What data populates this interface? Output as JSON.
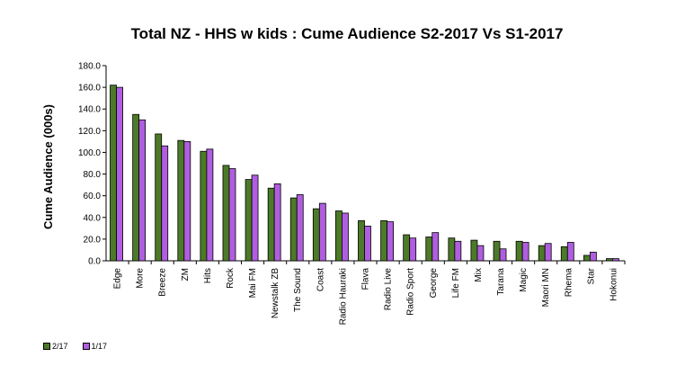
{
  "chart_data": {
    "type": "bar",
    "title": "Total NZ - HHS w kids : Cume Audience S2-2017 Vs S1-2017",
    "xlabel": "",
    "ylabel": "Cume Audience (000s)",
    "ylim": [
      0,
      180
    ],
    "yticks": [
      "0.0",
      "20.0",
      "40.0",
      "60.0",
      "80.0",
      "100.0",
      "120.0",
      "140.0",
      "160.0",
      "180.0"
    ],
    "grid": false,
    "legend_position": "bottom-left",
    "categories": [
      "Edge",
      "More",
      "Breeze",
      "ZM",
      "Hits",
      "Rock",
      "Mai FM",
      "Newstalk ZB",
      "The Sound",
      "Coast",
      "Radio Hauraki",
      "Flava",
      "Radio Live",
      "Radio Sport",
      "George",
      "Life FM",
      "Mix",
      "Tarana",
      "Magic",
      "Maori MN",
      "Rhema",
      "Star",
      "Hokonui"
    ],
    "series": [
      {
        "name": "2/17",
        "color": "#4d7a28",
        "values": [
          162,
          135,
          117,
          111,
          101,
          88,
          75,
          67,
          58,
          48,
          46,
          37,
          37,
          24,
          22,
          21,
          19,
          18,
          18,
          14,
          13,
          5,
          2
        ]
      },
      {
        "name": "1/17",
        "color": "#b05ee0",
        "values": [
          160,
          130,
          106,
          110,
          103,
          85,
          79,
          71,
          61,
          53,
          44,
          32,
          36,
          21,
          26,
          18,
          14,
          11,
          17,
          16,
          17,
          8,
          2
        ]
      }
    ]
  }
}
